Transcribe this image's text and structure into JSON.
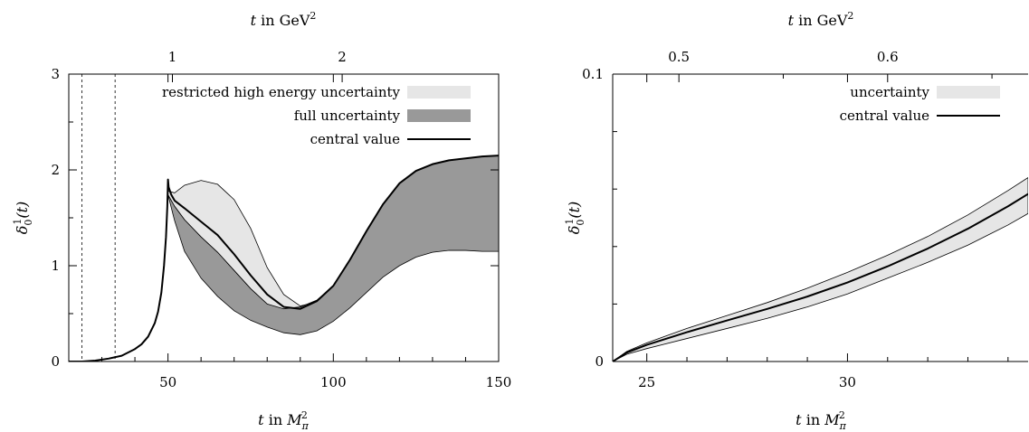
{
  "chart_data": [
    {
      "type": "line",
      "xlabel_bottom": {
        "pre": "t",
        "mid": " in ",
        "base": "M",
        "sub": "π",
        "sup": "2"
      },
      "xlabel_top": {
        "pre": "t",
        "mid": " in GeV",
        "sup": "2"
      },
      "ylabel": {
        "base": "δ",
        "sub": "0",
        "sup": "1",
        "arg": "(t)"
      },
      "xlim": [
        20,
        150
      ],
      "ylim": [
        0,
        3
      ],
      "xticks": [
        50,
        100,
        150
      ],
      "xtick_labels": [
        "50",
        "100",
        "150"
      ],
      "yticks": [
        0,
        1,
        2,
        3
      ],
      "ytick_labels": [
        "0",
        "1",
        "2",
        "3"
      ],
      "top_ticks": [
        1,
        2
      ],
      "top_tick_labels": [
        "1",
        "2"
      ],
      "vlines_dashed": [
        24,
        34
      ],
      "legend_position": "top-right",
      "series": [
        {
          "name": "restricted high energy uncertainty",
          "kind": "band",
          "color": "#e6e6e6",
          "x": [
            50,
            52,
            55,
            60,
            65,
            70,
            75,
            80,
            85,
            90,
            95,
            100,
            105,
            110,
            115,
            120,
            125,
            130,
            135,
            140,
            145,
            150
          ],
          "upper": [
            1.78,
            1.76,
            1.84,
            1.89,
            1.85,
            1.69,
            1.39,
            0.98,
            0.7,
            0.58,
            0.62,
            0.79,
            1.06,
            1.36,
            1.64,
            1.86,
            1.99,
            2.06,
            2.1,
            2.12,
            2.14,
            2.15
          ],
          "lower": [
            1.74,
            1.62,
            1.48,
            1.3,
            1.14,
            0.95,
            0.76,
            0.6,
            0.53,
            0.55,
            0.62,
            0.79,
            1.06,
            1.36,
            1.64,
            1.86,
            1.99,
            2.06,
            2.1,
            2.12,
            2.14,
            2.15
          ]
        },
        {
          "name": "full uncertainty",
          "kind": "band",
          "color": "#999999",
          "x": [
            50,
            52,
            55,
            60,
            65,
            70,
            75,
            80,
            85,
            90,
            95,
            100,
            105,
            110,
            115,
            120,
            125,
            130,
            135,
            140,
            145,
            150
          ],
          "upper": [
            1.74,
            1.62,
            1.48,
            1.3,
            1.14,
            0.95,
            0.76,
            0.6,
            0.55,
            0.57,
            0.64,
            0.79,
            1.06,
            1.36,
            1.64,
            1.86,
            1.99,
            2.06,
            2.1,
            2.12,
            2.14,
            2.15
          ],
          "lower": [
            1.74,
            1.47,
            1.15,
            0.87,
            0.68,
            0.53,
            0.43,
            0.36,
            0.3,
            0.28,
            0.32,
            0.42,
            0.56,
            0.72,
            0.88,
            1.0,
            1.09,
            1.14,
            1.16,
            1.16,
            1.15,
            1.15
          ]
        },
        {
          "name": "central value",
          "kind": "line",
          "color": "#000000",
          "x": [
            20,
            24,
            28,
            32,
            36,
            40,
            42,
            44,
            46,
            47,
            48,
            48.8,
            49.4,
            49.8,
            50,
            50.2,
            51,
            52,
            55,
            60,
            65,
            70,
            75,
            80,
            85,
            90,
            95,
            100,
            105,
            110,
            115,
            120,
            125,
            130,
            135,
            140,
            145,
            150
          ],
          "y": [
            0.0,
            0.0,
            0.01,
            0.03,
            0.06,
            0.13,
            0.18,
            0.26,
            0.4,
            0.52,
            0.72,
            1.0,
            1.3,
            1.62,
            1.9,
            1.82,
            1.74,
            1.68,
            1.6,
            1.46,
            1.32,
            1.12,
            0.9,
            0.7,
            0.57,
            0.55,
            0.63,
            0.79,
            1.06,
            1.36,
            1.64,
            1.86,
            1.99,
            2.06,
            2.1,
            2.12,
            2.14,
            2.15
          ]
        }
      ]
    },
    {
      "type": "line",
      "xlabel_bottom": {
        "pre": "t",
        "mid": " in ",
        "base": "M",
        "sub": "π",
        "sup": "2"
      },
      "xlabel_top": {
        "pre": "t",
        "mid": " in GeV",
        "sup": "2"
      },
      "ylabel": {
        "base": "δ",
        "sub": "0",
        "sup": "1",
        "arg": "(t)"
      },
      "xlim": [
        24.15,
        34.5
      ],
      "ylim": [
        0,
        0.1
      ],
      "xticks": [
        25,
        30
      ],
      "xtick_labels": [
        "25",
        "30"
      ],
      "yticks": [
        0,
        0.1
      ],
      "ytick_labels": [
        "0",
        "0.1"
      ],
      "top_ticks": [
        0.5,
        0.6
      ],
      "top_tick_labels": [
        "0.5",
        "0.6"
      ],
      "legend_position": "top-right",
      "series": [
        {
          "name": "uncertainty",
          "kind": "band",
          "color": "#e6e6e6",
          "x": [
            24.15,
            24.5,
            25,
            26,
            27,
            28,
            29,
            30,
            31,
            32,
            33,
            34,
            34.5
          ],
          "upper": [
            0.0,
            0.0035,
            0.0065,
            0.0115,
            0.016,
            0.0205,
            0.0255,
            0.031,
            0.037,
            0.0435,
            0.051,
            0.0595,
            0.064
          ],
          "lower": [
            0.0,
            0.0025,
            0.0045,
            0.008,
            0.0115,
            0.015,
            0.019,
            0.0235,
            0.029,
            0.0345,
            0.0405,
            0.0475,
            0.0515
          ]
        },
        {
          "name": "central value",
          "kind": "line",
          "color": "#000000",
          "x": [
            24.15,
            24.5,
            25,
            26,
            27,
            28,
            29,
            30,
            31,
            32,
            33,
            34,
            34.5
          ],
          "y": [
            0.0,
            0.0031,
            0.0058,
            0.0102,
            0.0143,
            0.0183,
            0.0226,
            0.0275,
            0.0331,
            0.0393,
            0.0462,
            0.054,
            0.0583
          ]
        }
      ]
    }
  ]
}
